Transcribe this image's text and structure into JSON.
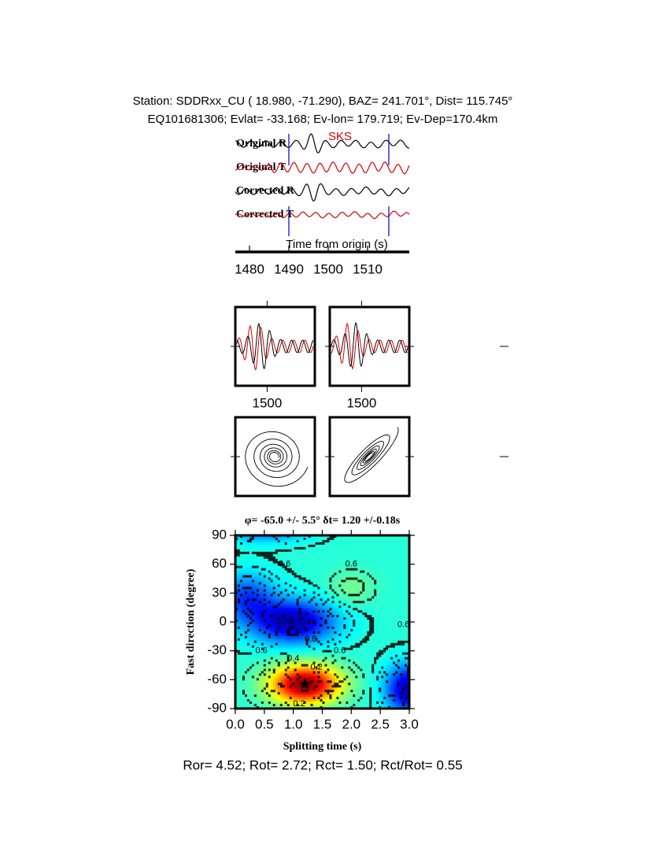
{
  "header": {
    "station": "Station: SDDRxx_CU (  18.980,  -71.290), BAZ=  241.701°, Dist=  115.745°",
    "event": "EQ101681306; Evlat= -33.168; Ev-lon= 179.719; Ev-Dep=170.4km"
  },
  "chart_data": [
    {
      "type": "waveform",
      "traces": [
        "Original R",
        "Original T",
        "Corrected R",
        "Corrected T"
      ],
      "colors": [
        "#000000",
        "#d40000",
        "#000000",
        "#d40000"
      ],
      "phase": "SKS",
      "phase_color": "#d40000",
      "xlabel": "Time from origin (s)",
      "xlim": [
        1476.4,
        1520.6
      ],
      "xticks": [
        1480,
        1490,
        1500,
        1510
      ],
      "window": [
        1490,
        1515.4
      ],
      "window_color": "#1010c0"
    },
    {
      "type": "window-panels",
      "xlim": [
        1490,
        1515
      ],
      "xticks": [
        1500
      ]
    },
    {
      "type": "contour",
      "title": "φ= -65.0 +/- 5.5° δt= 1.20 +/-0.18s",
      "xlabel": "Splitting time (s)",
      "ylabel": "Fast direction (degree)",
      "xlim": [
        0,
        3
      ],
      "ylim": [
        -90,
        90
      ],
      "xticks": [
        {
          "value": 0,
          "label": "0.0"
        },
        0.5,
        {
          "value": 1,
          "label": "1.0"
        },
        1.5,
        {
          "value": 2,
          "label": "2.0"
        },
        2.5,
        {
          "value": 3,
          "label": "3.0"
        }
      ],
      "yticks": [
        90,
        60,
        30,
        0,
        -30,
        -60,
        -90
      ],
      "best": [
        1.2,
        -65
      ],
      "contour_labels": [
        {
          "text": "0.6",
          "x": 0.85,
          "y": 60
        },
        {
          "text": "0.6",
          "x": 2.0,
          "y": 60
        },
        {
          "text": "0.6",
          "x": 0.45,
          "y": -30
        },
        {
          "text": "0.6",
          "x": 1.8,
          "y": -30
        },
        {
          "text": "0.8",
          "x": 1.3,
          "y": -18
        },
        {
          "text": "0.6",
          "x": 2.9,
          "y": -3
        },
        {
          "text": "0.4",
          "x": 1.0,
          "y": -38
        },
        {
          "text": "0.2",
          "x": 1.4,
          "y": -47
        },
        {
          "text": "0.2",
          "x": 1.1,
          "y": -85
        }
      ]
    }
  ],
  "footer": "Ror= 4.52; Rot= 2.72; Rct= 1.50; Rct/Rot= 0.55"
}
